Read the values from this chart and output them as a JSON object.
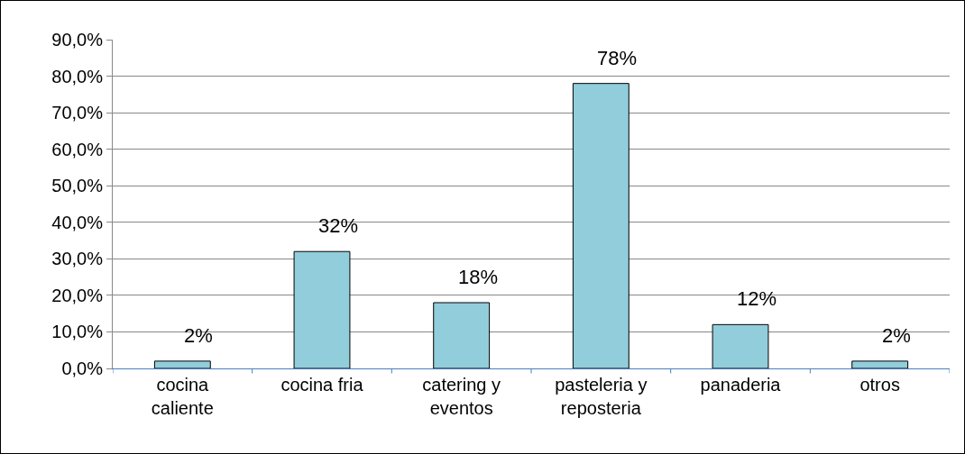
{
  "chart_data": {
    "type": "bar",
    "categories": [
      "cocina caliente",
      "cocina fria",
      "catering y eventos",
      "pasteleria y reposteria",
      "panaderia",
      "otros"
    ],
    "values": [
      2,
      32,
      18,
      78,
      12,
      2
    ],
    "value_labels": [
      "2%",
      "32%",
      "18%",
      "78%",
      "12%",
      "2%"
    ],
    "color": "#92cddc",
    "ylim": [
      0,
      90
    ],
    "yticks": [
      {
        "value": 0,
        "label": "0,0%"
      },
      {
        "value": 10,
        "label": "10,0%"
      },
      {
        "value": 20,
        "label": "20,0%"
      },
      {
        "value": 30,
        "label": "30,0%"
      },
      {
        "value": 40,
        "label": "40,0%"
      },
      {
        "value": 50,
        "label": "50,0%"
      },
      {
        "value": 60,
        "label": "60,0%"
      },
      {
        "value": 70,
        "label": "70,0%"
      },
      {
        "value": 80,
        "label": "80,0%"
      },
      {
        "value": 90,
        "label": "90,0%"
      }
    ],
    "grid": "y",
    "legend": false
  }
}
